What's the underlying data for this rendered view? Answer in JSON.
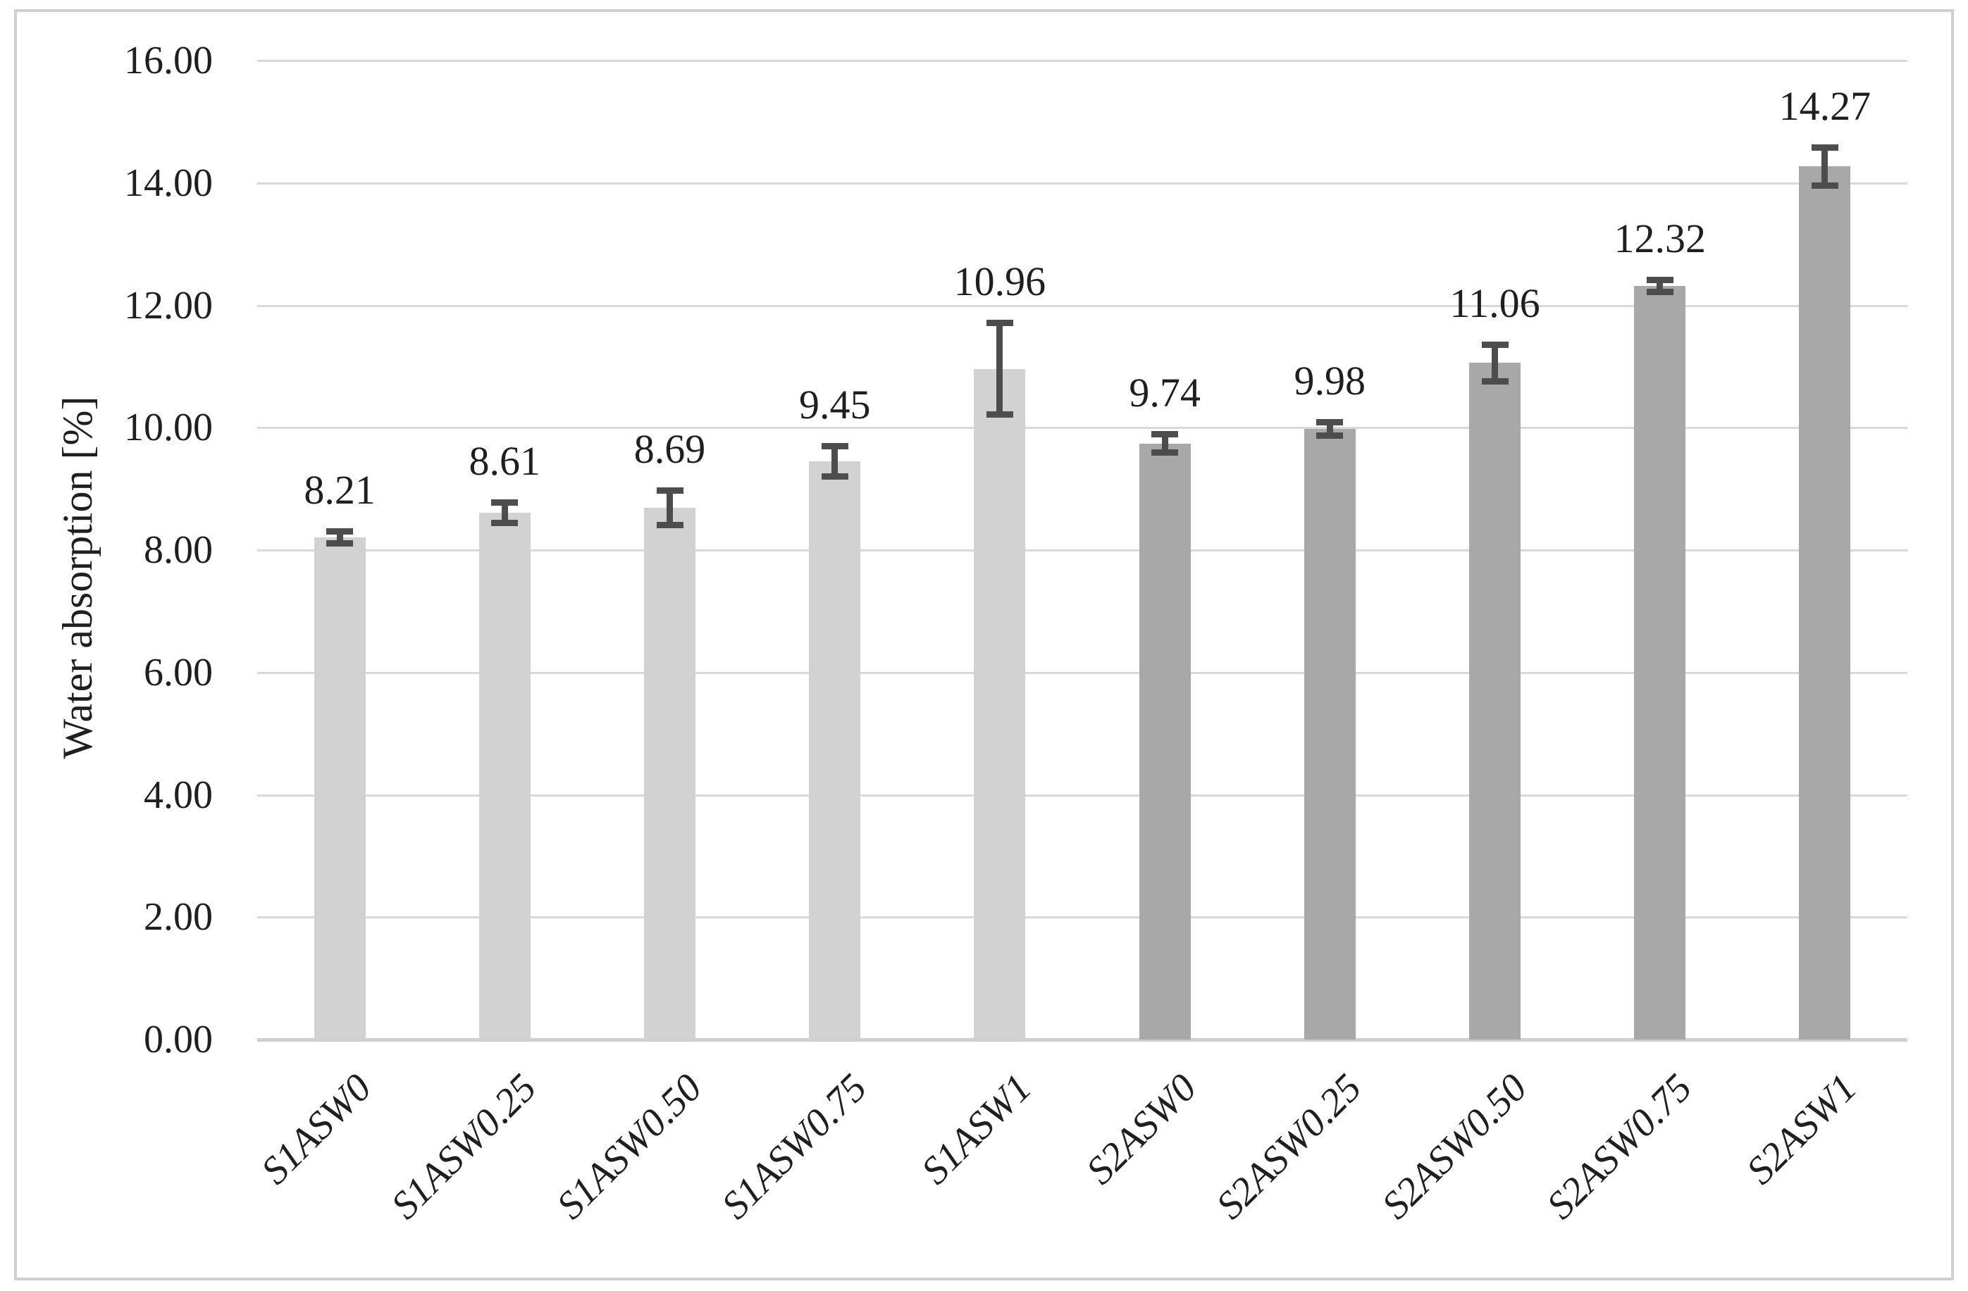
{
  "figure": {
    "background": "#ffffff",
    "border_color": "#cfcfcf"
  },
  "chart_data": {
    "type": "bar",
    "title": "",
    "xlabel": "",
    "ylabel": "Water absorption [%]",
    "ylim": [
      0,
      16
    ],
    "ytick_step": 2,
    "ytick_decimals": 2,
    "grid": "horizontal",
    "legend": "none",
    "categories": [
      "S1ASW0",
      "S1ASW0.25",
      "S1ASW0.50",
      "S1ASW0.75",
      "S1ASW1",
      "S2ASW0",
      "S2ASW0.25",
      "S2ASW0.50",
      "S2ASW0.75",
      "S2ASW1"
    ],
    "values": [
      8.21,
      8.61,
      8.69,
      9.45,
      10.96,
      9.74,
      9.98,
      11.06,
      12.32,
      14.27
    ],
    "errors": [
      0.15,
      0.22,
      0.33,
      0.3,
      0.8,
      0.2,
      0.16,
      0.35,
      0.15,
      0.36
    ],
    "data_labels": [
      "8.21",
      "8.61",
      "8.69",
      "9.45",
      "10.96",
      "9.74",
      "9.98",
      "11.06",
      "12.32",
      "14.27"
    ],
    "ytick_labels": [
      "0.00",
      "2.00",
      "4.00",
      "6.00",
      "8.00",
      "10.00",
      "12.00",
      "14.00",
      "16.00"
    ],
    "bar_colors": [
      "#d2d2d2",
      "#d2d2d2",
      "#d2d2d2",
      "#d2d2d2",
      "#d2d2d2",
      "#a8a8a8",
      "#a8a8a8",
      "#a8a8a8",
      "#a8a8a8",
      "#a8a8a8"
    ],
    "series_groups": [
      {
        "name": "S1",
        "color": "#d2d2d2",
        "category_indices": [
          0,
          1,
          2,
          3,
          4
        ]
      },
      {
        "name": "S2",
        "color": "#a8a8a8",
        "category_indices": [
          5,
          6,
          7,
          8,
          9
        ]
      }
    ],
    "colors": {
      "gridline": "#d9d9d9",
      "axis_line": "#cfcfcf",
      "error_bar": "#4d4d4d",
      "text": "#1f1f1f"
    }
  }
}
